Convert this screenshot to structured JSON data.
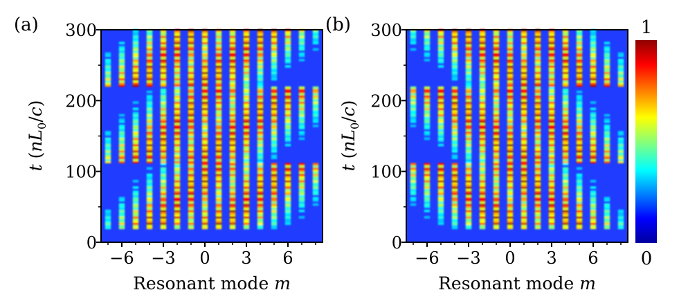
{
  "chart_data": [
    {
      "type": "heatmap",
      "panel_label": "(a)",
      "xlabel": "Resonant mode m",
      "ylabel": "t (nL0/c)",
      "xlim": [
        -7.5,
        8.5
      ],
      "ylim": [
        0,
        300
      ],
      "xticks": [
        -6,
        -3,
        0,
        3,
        6
      ],
      "yticks": [
        0,
        100,
        200,
        300
      ],
      "modes": [
        -7,
        -6,
        -5,
        -4,
        -3,
        -2,
        -1,
        0,
        1,
        2,
        3,
        4,
        5,
        6,
        7,
        8
      ],
      "pattern": "staircase",
      "period": 110,
      "pulse_spacing": 8.5,
      "intensity_range": [
        0,
        1
      ]
    },
    {
      "type": "heatmap",
      "panel_label": "(b)",
      "xlabel": "Resonant mode m",
      "ylabel": "t (nL0/c)",
      "xlim": [
        -7.5,
        8.5
      ],
      "ylim": [
        0,
        300
      ],
      "xticks": [
        -6,
        -3,
        0,
        3,
        6
      ],
      "yticks": [
        0,
        100,
        200,
        300
      ],
      "modes": [
        -7,
        -6,
        -5,
        -4,
        -3,
        -2,
        -1,
        0,
        1,
        2,
        3,
        4,
        5,
        6,
        7,
        8
      ],
      "pattern": "mirrored-staircase",
      "period": 110,
      "pulse_spacing": 8.5,
      "intensity_range": [
        0,
        1
      ]
    }
  ],
  "colorbar": {
    "max_label": "1",
    "min_label": "0",
    "colormap": "jet",
    "colors": [
      "#00008f",
      "#0000ff",
      "#00ffff",
      "#ffff00",
      "#ff0000",
      "#800000"
    ]
  },
  "labels": {
    "panel_a": "(a)",
    "panel_b": "(b)",
    "xlabel_a": "Resonant mode m",
    "xlabel_b": "Resonant mode m",
    "ylabel_a": "t (nL0/c)",
    "ylabel_b": "t (nL0/c)"
  }
}
